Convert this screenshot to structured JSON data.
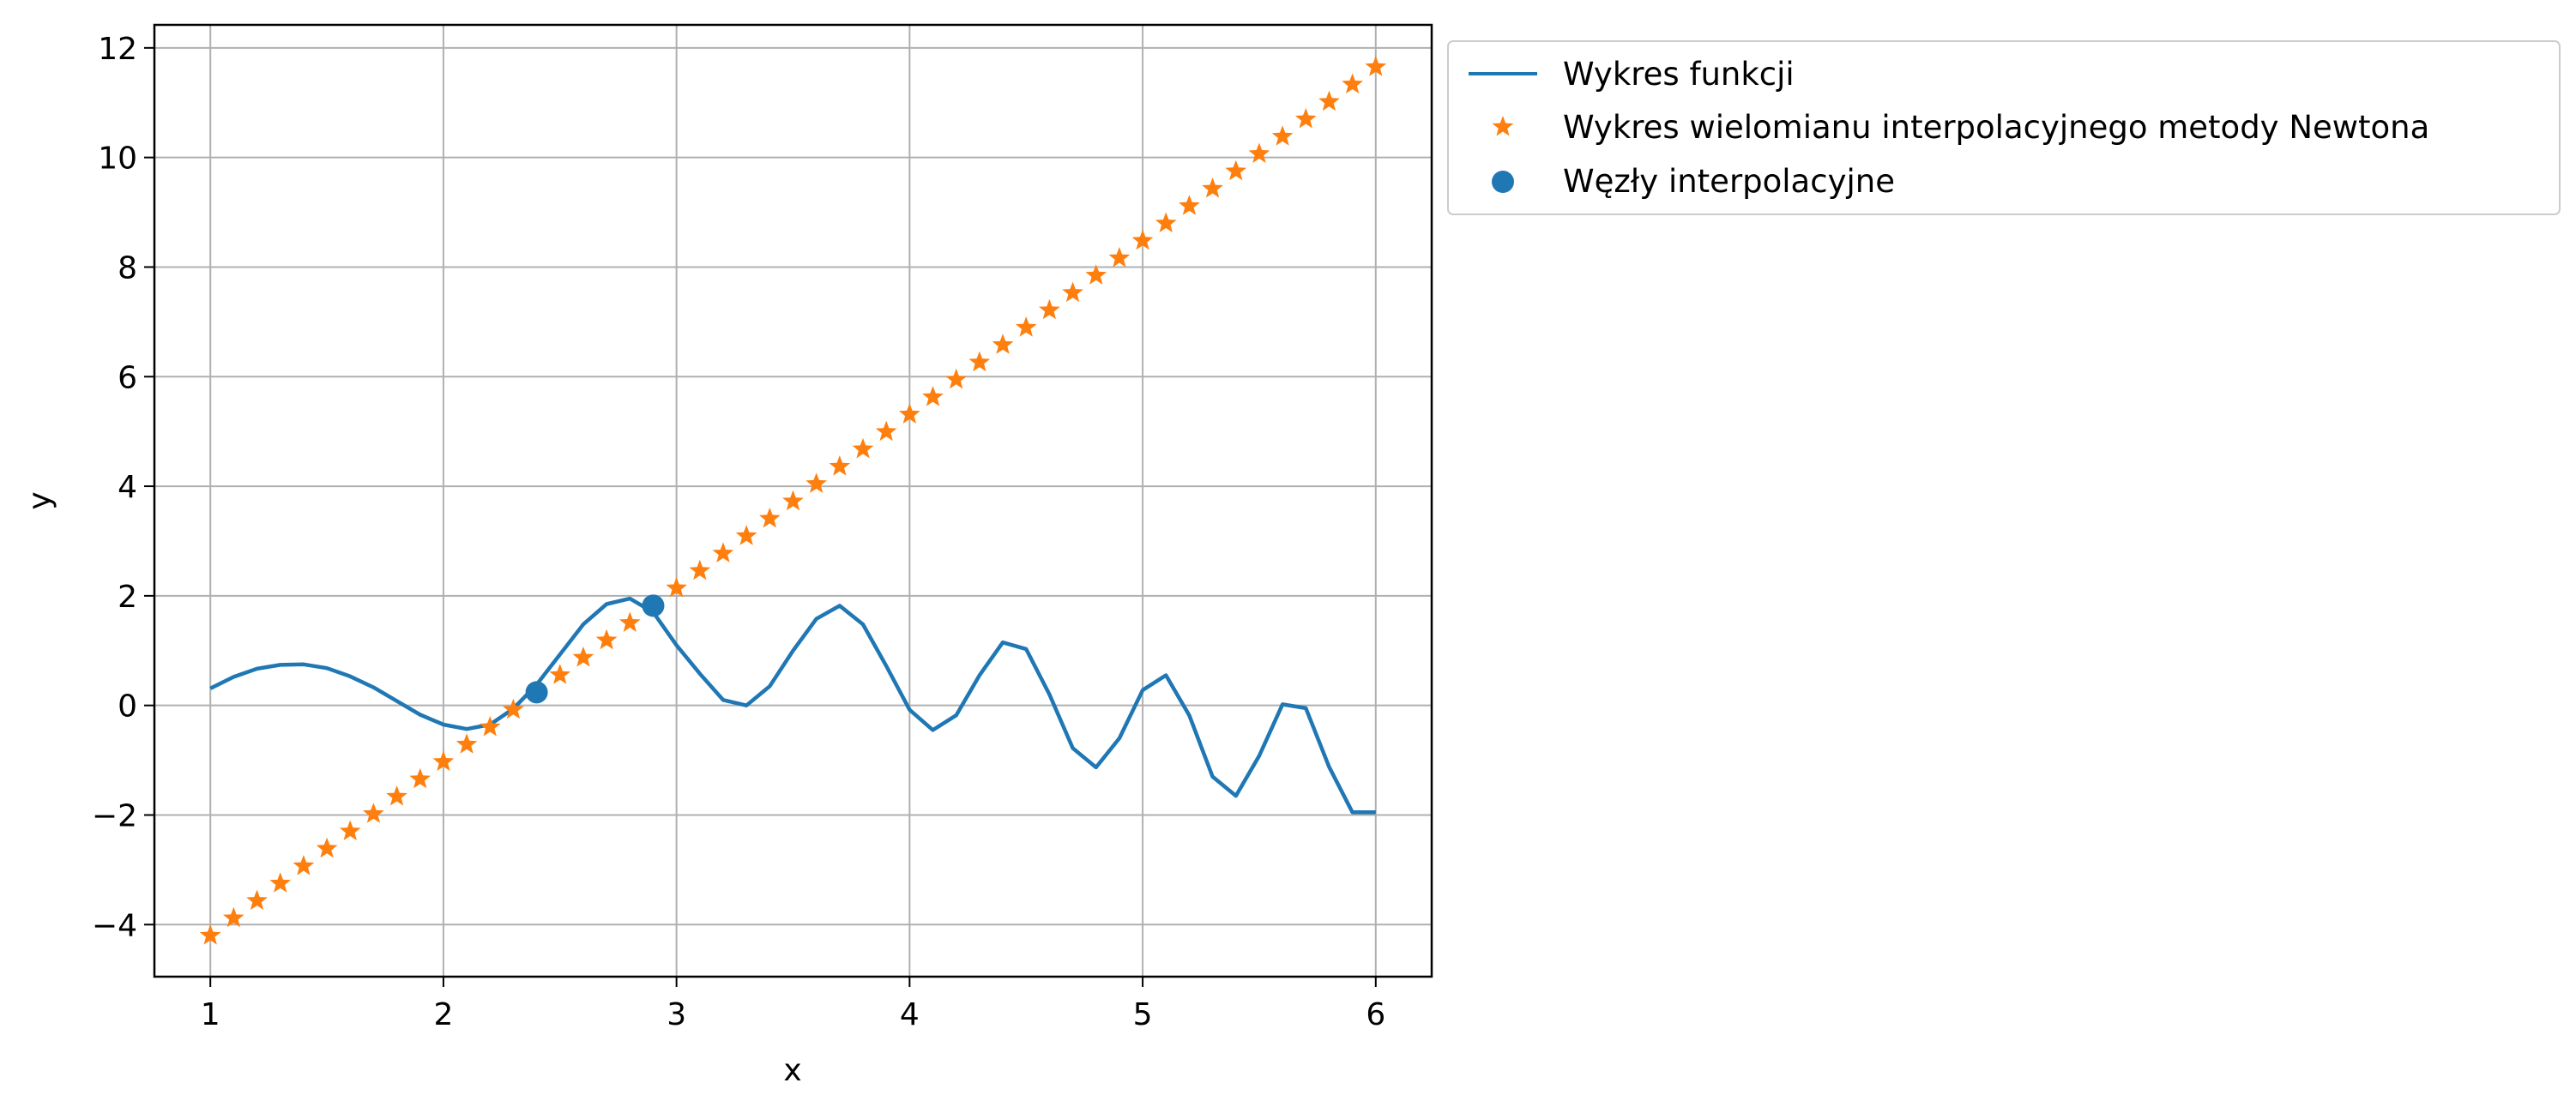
{
  "chart_data": {
    "type": "line",
    "title": "",
    "xlabel": "x",
    "ylabel": "y",
    "xlim": [
      0.76,
      6.24
    ],
    "ylim": [
      -4.95,
      12.42
    ],
    "xticks": [
      1,
      2,
      3,
      4,
      5,
      6
    ],
    "yticks": [
      -4,
      -2,
      0,
      2,
      4,
      6,
      8,
      10,
      12
    ],
    "ytick_labels": [
      "−4",
      "−2",
      "0",
      "2",
      "4",
      "6",
      "8",
      "10",
      "12"
    ],
    "grid": true,
    "legend_position": "outside-top-right",
    "series": [
      {
        "name": "Wykres funkcji",
        "style": "line",
        "color": "#1f77b4",
        "x": [
          1.0,
          1.1,
          1.2,
          1.3,
          1.4,
          1.5,
          1.6,
          1.7,
          1.8,
          1.9,
          2.0,
          2.1,
          2.2,
          2.3,
          2.4,
          2.5,
          2.6,
          2.7,
          2.8,
          2.9,
          3.0,
          3.1,
          3.2,
          3.3,
          3.4,
          3.5,
          3.6,
          3.7,
          3.8,
          3.9,
          4.0,
          4.1,
          4.2,
          4.3,
          4.4,
          4.5,
          4.6,
          4.7,
          4.8,
          4.9,
          5.0,
          5.1,
          5.2,
          5.3,
          5.4,
          5.5,
          5.6,
          5.7,
          5.8,
          5.9,
          6.0
        ],
        "y": [
          0.31,
          0.52,
          0.67,
          0.74,
          0.75,
          0.68,
          0.53,
          0.33,
          0.08,
          -0.17,
          -0.35,
          -0.43,
          -0.35,
          -0.06,
          0.38,
          0.93,
          1.48,
          1.85,
          1.95,
          1.7,
          1.1,
          0.58,
          0.1,
          0.0,
          0.35,
          1.0,
          1.58,
          1.82,
          1.48,
          0.72,
          -0.08,
          -0.45,
          -0.18,
          0.55,
          1.15,
          1.03,
          0.2,
          -0.78,
          -1.13,
          -0.6,
          0.28,
          0.55,
          -0.18,
          -1.3,
          -1.65,
          -0.92,
          0.02,
          -0.05,
          -1.12,
          -1.95,
          -1.95
        ]
      },
      {
        "name": "Wykres wielomianu interpolacyjnego metody Newtona",
        "style": "star-markers",
        "color": "#ff7f0e",
        "x_start": 1.0,
        "x_end": 6.0,
        "count": 51,
        "slope": 3.17,
        "intercept": -7.37
      },
      {
        "name": "Węzły interpolacyjne",
        "style": "circle-markers",
        "color": "#1f77b4",
        "x": [
          2.4,
          2.9
        ],
        "y": [
          0.24,
          1.82
        ]
      }
    ]
  }
}
